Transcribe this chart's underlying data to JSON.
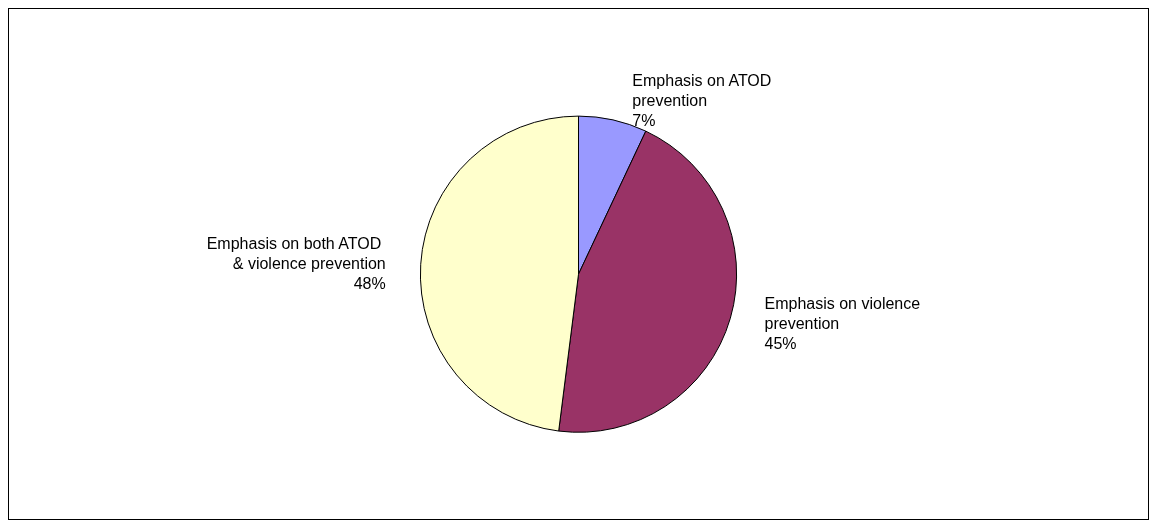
{
  "chart_data": {
    "type": "pie",
    "categories": [
      "Emphasis on ATOD prevention",
      "Emphasis on violence prevention",
      "Emphasis on both ATOD & violence prevention"
    ],
    "values": [
      7,
      45,
      48
    ],
    "value_labels": [
      "7%",
      "45%",
      "48%"
    ],
    "colors": [
      "#9999ff",
      "#993366",
      "#ffffcc"
    ],
    "legend": false
  }
}
